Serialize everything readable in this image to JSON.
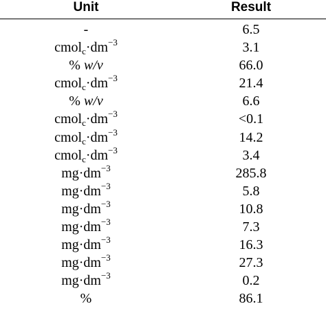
{
  "table": {
    "headers": {
      "unit": "Unit",
      "result": "Result"
    },
    "rows": [
      {
        "unit": [
          {
            "t": "-"
          }
        ],
        "result": "6.5"
      },
      {
        "unit": [
          {
            "t": "cmol"
          },
          {
            "t": "c",
            "s": "sub"
          },
          {
            "t": "·dm"
          },
          {
            "t": "−3",
            "s": "sup"
          }
        ],
        "result": "3.1"
      },
      {
        "unit": [
          {
            "t": "% "
          },
          {
            "t": "w/v",
            "s": "it"
          }
        ],
        "result": "66.0"
      },
      {
        "unit": [
          {
            "t": "cmol"
          },
          {
            "t": "c",
            "s": "sub"
          },
          {
            "t": "·dm"
          },
          {
            "t": "−3",
            "s": "sup"
          }
        ],
        "result": "21.4"
      },
      {
        "unit": [
          {
            "t": "% "
          },
          {
            "t": "w/v",
            "s": "it"
          }
        ],
        "result": "6.6"
      },
      {
        "unit": [
          {
            "t": "cmol"
          },
          {
            "t": "c",
            "s": "sub"
          },
          {
            "t": "·dm"
          },
          {
            "t": "−3",
            "s": "sup"
          }
        ],
        "result": "<0.1"
      },
      {
        "unit": [
          {
            "t": "cmol"
          },
          {
            "t": "c",
            "s": "sub"
          },
          {
            "t": "·dm"
          },
          {
            "t": "−3",
            "s": "sup"
          }
        ],
        "result": "14.2"
      },
      {
        "unit": [
          {
            "t": "cmol"
          },
          {
            "t": "c",
            "s": "sub"
          },
          {
            "t": "·dm"
          },
          {
            "t": "−3",
            "s": "sup"
          }
        ],
        "result": "3.4"
      },
      {
        "unit": [
          {
            "t": "mg·dm"
          },
          {
            "t": "−3",
            "s": "sup"
          }
        ],
        "result": "285.8"
      },
      {
        "unit": [
          {
            "t": "mg·dm"
          },
          {
            "t": "−3",
            "s": "sup"
          }
        ],
        "result": "5.8"
      },
      {
        "unit": [
          {
            "t": "mg·dm"
          },
          {
            "t": "−3",
            "s": "sup"
          }
        ],
        "result": "10.8"
      },
      {
        "unit": [
          {
            "t": "mg·dm"
          },
          {
            "t": "−3",
            "s": "sup"
          }
        ],
        "result": "7.3"
      },
      {
        "unit": [
          {
            "t": "mg·dm"
          },
          {
            "t": "−3",
            "s": "sup"
          }
        ],
        "result": "16.3"
      },
      {
        "unit": [
          {
            "t": "mg·dm"
          },
          {
            "t": "−3",
            "s": "sup"
          }
        ],
        "result": "27.3"
      },
      {
        "unit": [
          {
            "t": "mg·dm"
          },
          {
            "t": "−3",
            "s": "sup"
          }
        ],
        "result": "0.2"
      },
      {
        "unit": [
          {
            "t": "%"
          }
        ],
        "result": "86.1"
      }
    ]
  }
}
